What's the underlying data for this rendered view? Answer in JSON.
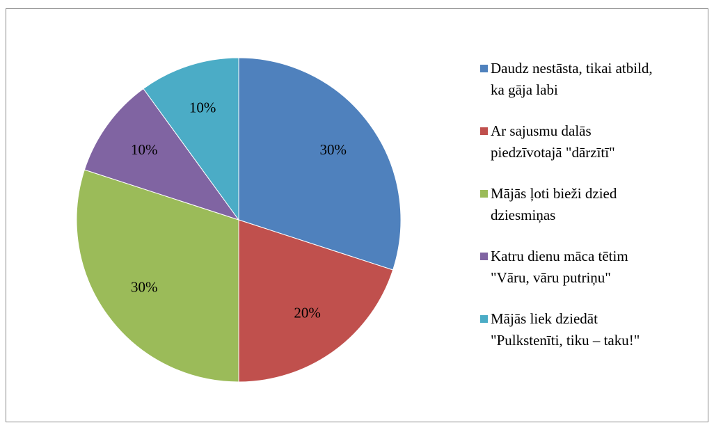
{
  "chart_data": {
    "type": "pie",
    "categories": [
      "Daudz nestāsta, tikai atbild, ka gāja labi",
      "Ar sajusmu dalās piedzīvotajā \"dārzītī\"",
      "Mājās ļoti bieži dzied dziesmiņas",
      "Katru dienu māca tētim \"Vāru, vāru putriņu\"",
      "Mājās liek dziedāt \"Pulkstenīti, tiku – taku!\""
    ],
    "values": [
      30,
      20,
      30,
      10,
      10
    ],
    "value_labels": [
      "30%",
      "20%",
      "30%",
      "10%",
      "10%"
    ],
    "colors": [
      "#4f81bd",
      "#c0504d",
      "#9bbb59",
      "#8064a2",
      "#4bacc6"
    ],
    "legend": "right"
  }
}
